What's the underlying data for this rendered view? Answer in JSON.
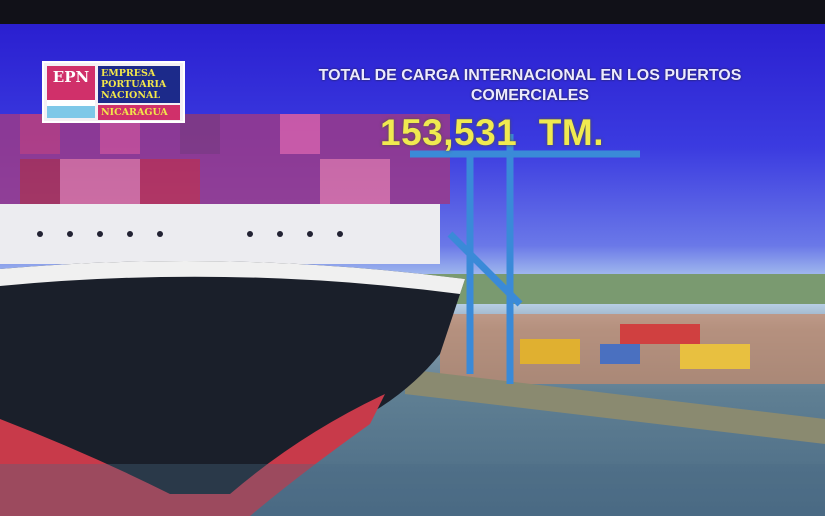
{
  "logo": {
    "abbr": "EPN",
    "name_lines": [
      "EMPRESA",
      "PORTUARIA",
      "NACIONAL"
    ],
    "country": "NICARAGUA"
  },
  "slide": {
    "title": "TOTAL DE CARGA INTERNACIONAL EN LOS PUERTOS COMERCIALES",
    "value": "153,531  TM."
  },
  "colors": {
    "background": "#2a1fd0",
    "title": "#eceaff",
    "value": "#f0ea50",
    "logo_pink": "#d0306a",
    "logo_blue": "#1c2a8a"
  }
}
